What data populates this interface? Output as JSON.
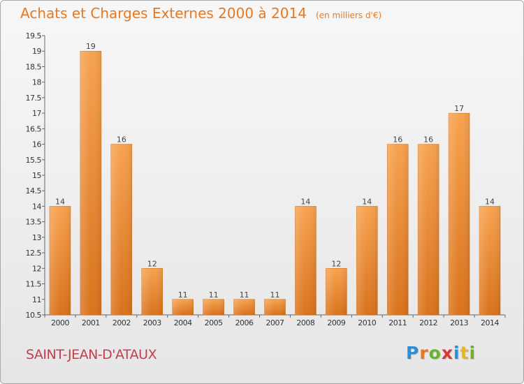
{
  "header": {
    "title": "Achats et Charges Externes 2000 à 2014",
    "subtitle": "(en milliers d'€)"
  },
  "commune": "SAINT-JEAN-D'ATAUX",
  "logo": {
    "text": "Proxiti",
    "letters": [
      {
        "ch": "P",
        "color": "#2a8fd6"
      },
      {
        "ch": "r",
        "color": "#e8781f"
      },
      {
        "ch": "o",
        "color": "#6bb42a"
      },
      {
        "ch": "x",
        "color": "#d93636"
      },
      {
        "ch": "i",
        "color": "#2a8fd6"
      },
      {
        "ch": "t",
        "color": "#e8b41f"
      },
      {
        "ch": "i",
        "color": "#6bb42a"
      }
    ]
  },
  "chart_data": {
    "type": "bar",
    "title": "Achats et Charges Externes 2000 à 2014",
    "subtitle": "(en milliers d'€)",
    "categories": [
      "2000",
      "2001",
      "2002",
      "2003",
      "2004",
      "2005",
      "2006",
      "2007",
      "2008",
      "2009",
      "2010",
      "2011",
      "2012",
      "2013",
      "2014"
    ],
    "values": [
      14,
      19,
      16,
      12,
      11,
      11,
      11,
      11,
      14,
      12,
      14,
      16,
      16,
      17,
      14
    ],
    "data_labels": [
      "14",
      "19",
      "16",
      "12",
      "11",
      "11",
      "11",
      "11",
      "14",
      "12",
      "14",
      "16",
      "16",
      "17",
      "14"
    ],
    "ylim": [
      10.5,
      19.5
    ],
    "yticks": [
      "10.5",
      "11",
      "11.5",
      "12",
      "12.5",
      "13",
      "13.5",
      "14",
      "14.5",
      "15",
      "15.5",
      "16",
      "16.5",
      "17",
      "17.5",
      "18",
      "18.5",
      "19",
      "19.5"
    ],
    "grid": false,
    "bar_color_top": "#f7a24f",
    "bar_color_bottom": "#d9721c",
    "xlabel": "",
    "ylabel": ""
  }
}
